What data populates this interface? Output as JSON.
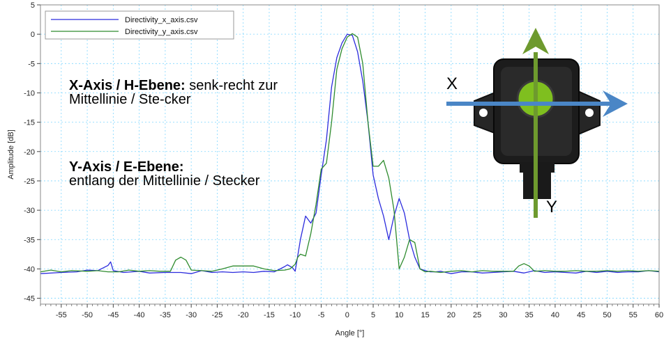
{
  "chart_data": {
    "type": "line",
    "title": "",
    "xlabel": "Angle [°]",
    "ylabel": "Amplitude [dB]",
    "xlim": [
      -59,
      60
    ],
    "ylim": [
      -46,
      5
    ],
    "x_ticks": [
      -55,
      -50,
      -45,
      -40,
      -35,
      -30,
      -25,
      -20,
      -15,
      -10,
      -5,
      0,
      5,
      10,
      15,
      20,
      25,
      30,
      35,
      40,
      45,
      50,
      55,
      60
    ],
    "y_ticks": [
      5,
      0,
      -5,
      -10,
      -15,
      -20,
      -25,
      -30,
      -35,
      -40,
      -45
    ],
    "grid": true,
    "legend_position": "top-left",
    "series": [
      {
        "name": "Directivity_x_axis.csv",
        "color": "#2b2bdd",
        "x": [
          -59,
          -55,
          -52,
          -50,
          -48,
          -46,
          -45.5,
          -45,
          -43,
          -40,
          -38,
          -35,
          -32,
          -30,
          -28,
          -26,
          -24,
          -22,
          -20,
          -18,
          -16,
          -14,
          -12,
          -11.5,
          -10.5,
          -10,
          -9,
          -8,
          -7,
          -6,
          -5,
          -4,
          -3,
          -2,
          -1,
          0,
          1,
          2,
          3,
          4,
          5,
          6,
          7,
          8,
          9,
          10,
          11,
          12,
          13,
          14,
          15,
          16,
          17,
          18,
          20,
          22,
          24,
          26,
          28,
          30,
          32,
          34,
          36,
          38,
          40,
          42,
          44,
          46,
          48,
          50,
          52,
          54,
          56,
          58,
          60
        ],
        "y": [
          -40.8,
          -40.6,
          -40.5,
          -40.2,
          -40.3,
          -39.4,
          -38.8,
          -40.3,
          -40.6,
          -40.4,
          -40.7,
          -40.6,
          -40.6,
          -40.8,
          -40.3,
          -40.6,
          -40.5,
          -40.6,
          -40.5,
          -40.6,
          -40.4,
          -40.5,
          -39.6,
          -39.3,
          -39.8,
          -40.4,
          -35,
          -31,
          -32.2,
          -30.5,
          -24,
          -18,
          -9,
          -4,
          -1.5,
          0,
          -0.2,
          -3,
          -8,
          -15,
          -24,
          -28,
          -31,
          -35,
          -31,
          -28,
          -30.5,
          -35,
          -38,
          -40,
          -40.3,
          -40.5,
          -40.5,
          -40.4,
          -40.8,
          -40.5,
          -40.5,
          -40.7,
          -40.6,
          -40.5,
          -40.4,
          -40.7,
          -40.3,
          -40.6,
          -40.5,
          -40.6,
          -40.7,
          -40.4,
          -40.6,
          -40.4,
          -40.6,
          -40.5,
          -40.5,
          -40.3,
          -40.5
        ]
      },
      {
        "name": "Directivity_y_axis.csv",
        "color": "#2e8b2e",
        "x": [
          -59,
          -57,
          -55,
          -53,
          -50,
          -48,
          -46,
          -44,
          -42,
          -40,
          -38,
          -36,
          -34,
          -33,
          -32,
          -31,
          -30,
          -28,
          -26,
          -24,
          -22,
          -20,
          -18,
          -16,
          -14,
          -12,
          -11,
          -10,
          -9.5,
          -9,
          -8,
          -7,
          -6,
          -5,
          -4,
          -3,
          -2,
          -1,
          0,
          1,
          2,
          3,
          4,
          5,
          6,
          7,
          8,
          9,
          10,
          11,
          12,
          13,
          14,
          15,
          16,
          18,
          20,
          22,
          24,
          26,
          28,
          30,
          32,
          33,
          34,
          35,
          36,
          38,
          40,
          42,
          44,
          46,
          48,
          50,
          52,
          54,
          56,
          58,
          60
        ],
        "y": [
          -40.5,
          -40.2,
          -40.5,
          -40.3,
          -40.4,
          -40.3,
          -40.5,
          -40.5,
          -40.2,
          -40.4,
          -40.3,
          -40.4,
          -40.4,
          -38.5,
          -38,
          -38.5,
          -40.2,
          -40.3,
          -40.4,
          -40,
          -39.5,
          -39.5,
          -39.5,
          -40,
          -40.3,
          -40.2,
          -40,
          -39.2,
          -38,
          -37.5,
          -37.8,
          -34,
          -29,
          -23,
          -22,
          -15,
          -6,
          -2.5,
          -0.5,
          0.1,
          -0.5,
          -5,
          -15,
          -22.5,
          -22.5,
          -21.5,
          -24.5,
          -30,
          -40,
          -38,
          -35,
          -35.5,
          -40,
          -40.5,
          -40.4,
          -40.6,
          -40.4,
          -40.3,
          -40.5,
          -40.3,
          -40.4,
          -40.4,
          -40.4,
          -39.5,
          -39.1,
          -39.5,
          -40.4,
          -40.3,
          -40.4,
          -40.4,
          -40.3,
          -40.4,
          -40.4,
          -40.3,
          -40.4,
          -40.3,
          -40.4,
          -40.3,
          -40.4
        ]
      }
    ]
  },
  "annotations": {
    "x_axis": {
      "heading": "X-Axis / H-Ebene:",
      "text": "senk-recht zur Mittellinie / Ste-cker"
    },
    "y_axis": {
      "heading": "Y-Axis / E-Ebene:",
      "text": "entlang der Mittellinie / Stecker"
    }
  },
  "sensor_image": {
    "x_label": "X",
    "y_label": "Y",
    "x_arrow_color": "#4a86c6",
    "y_arrow_color": "#6e9a2e",
    "lens_color": "#7fbf1f"
  }
}
